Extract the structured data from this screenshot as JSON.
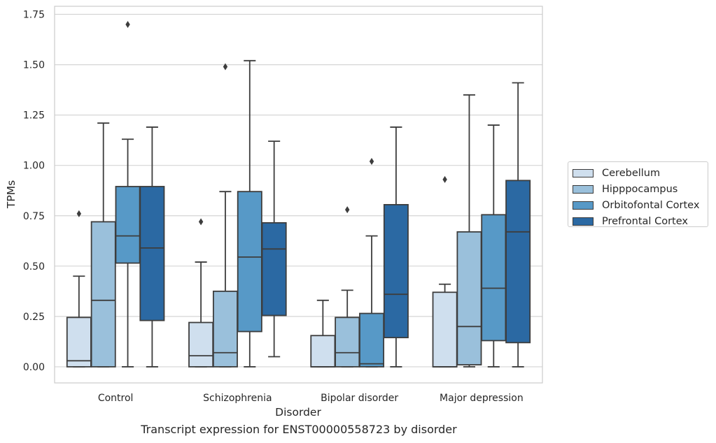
{
  "caption": "Transcript expression for ENST00000558723 by disorder",
  "chart_data": {
    "type": "box",
    "xlabel": "Disorder",
    "ylabel": "TPMs",
    "categories": [
      "Control",
      "Schizophrenia",
      "Bipolar disorder",
      "Major depression"
    ],
    "ylim": [
      -0.08,
      1.79
    ],
    "yticks": [
      0.0,
      0.25,
      0.5,
      0.75,
      1.0,
      1.25,
      1.5,
      1.75
    ],
    "ytick_labels": [
      "0.00",
      "0.25",
      "0.50",
      "0.75",
      "1.00",
      "1.25",
      "1.50",
      "1.75"
    ],
    "grid": "horizontal",
    "legend_position": "outside-right",
    "series": [
      {
        "name": "Cerebellum",
        "color": "#cfdfee",
        "boxes": [
          {
            "whisker_low": 0.0,
            "q1": 0.0,
            "median": 0.03,
            "q3": 0.245,
            "whisker_high": 0.45,
            "outliers": [
              0.76
            ]
          },
          {
            "whisker_low": 0.0,
            "q1": 0.0,
            "median": 0.055,
            "q3": 0.22,
            "whisker_high": 0.52,
            "outliers": [
              0.72
            ]
          },
          {
            "whisker_low": 0.0,
            "q1": 0.0,
            "median": 0.0,
            "q3": 0.155,
            "whisker_high": 0.33,
            "outliers": []
          },
          {
            "whisker_low": 0.0,
            "q1": 0.0,
            "median": 0.0,
            "q3": 0.37,
            "whisker_high": 0.41,
            "outliers": [
              0.93
            ]
          }
        ]
      },
      {
        "name": "Hipppocampus",
        "color": "#9ac0db",
        "boxes": [
          {
            "whisker_low": 0.0,
            "q1": 0.0,
            "median": 0.33,
            "q3": 0.72,
            "whisker_high": 1.21,
            "outliers": []
          },
          {
            "whisker_low": 0.0,
            "q1": 0.0,
            "median": 0.07,
            "q3": 0.375,
            "whisker_high": 0.87,
            "outliers": [
              1.49
            ]
          },
          {
            "whisker_low": 0.0,
            "q1": 0.0,
            "median": 0.07,
            "q3": 0.245,
            "whisker_high": 0.38,
            "outliers": [
              0.78
            ]
          },
          {
            "whisker_low": 0.0,
            "q1": 0.01,
            "median": 0.2,
            "q3": 0.67,
            "whisker_high": 1.35,
            "outliers": []
          }
        ]
      },
      {
        "name": "Orbitofontal Cortex",
        "color": "#5799c7",
        "boxes": [
          {
            "whisker_low": 0.0,
            "q1": 0.515,
            "median": 0.65,
            "q3": 0.895,
            "whisker_high": 1.13,
            "outliers": [
              1.7
            ]
          },
          {
            "whisker_low": 0.0,
            "q1": 0.175,
            "median": 0.545,
            "q3": 0.87,
            "whisker_high": 1.52,
            "outliers": []
          },
          {
            "whisker_low": 0.0,
            "q1": 0.0,
            "median": 0.015,
            "q3": 0.265,
            "whisker_high": 0.65,
            "outliers": [
              1.02
            ]
          },
          {
            "whisker_low": 0.0,
            "q1": 0.13,
            "median": 0.39,
            "q3": 0.755,
            "whisker_high": 1.2,
            "outliers": []
          }
        ]
      },
      {
        "name": "Prefrontal Cortex",
        "color": "#2b69a3",
        "boxes": [
          {
            "whisker_low": 0.0,
            "q1": 0.23,
            "median": 0.59,
            "q3": 0.895,
            "whisker_high": 1.19,
            "outliers": []
          },
          {
            "whisker_low": 0.05,
            "q1": 0.255,
            "median": 0.585,
            "q3": 0.715,
            "whisker_high": 1.12,
            "outliers": []
          },
          {
            "whisker_low": 0.0,
            "q1": 0.145,
            "median": 0.36,
            "q3": 0.805,
            "whisker_high": 1.19,
            "outliers": []
          },
          {
            "whisker_low": 0.0,
            "q1": 0.12,
            "median": 0.67,
            "q3": 0.925,
            "whisker_high": 1.41,
            "outliers": []
          }
        ]
      }
    ]
  }
}
